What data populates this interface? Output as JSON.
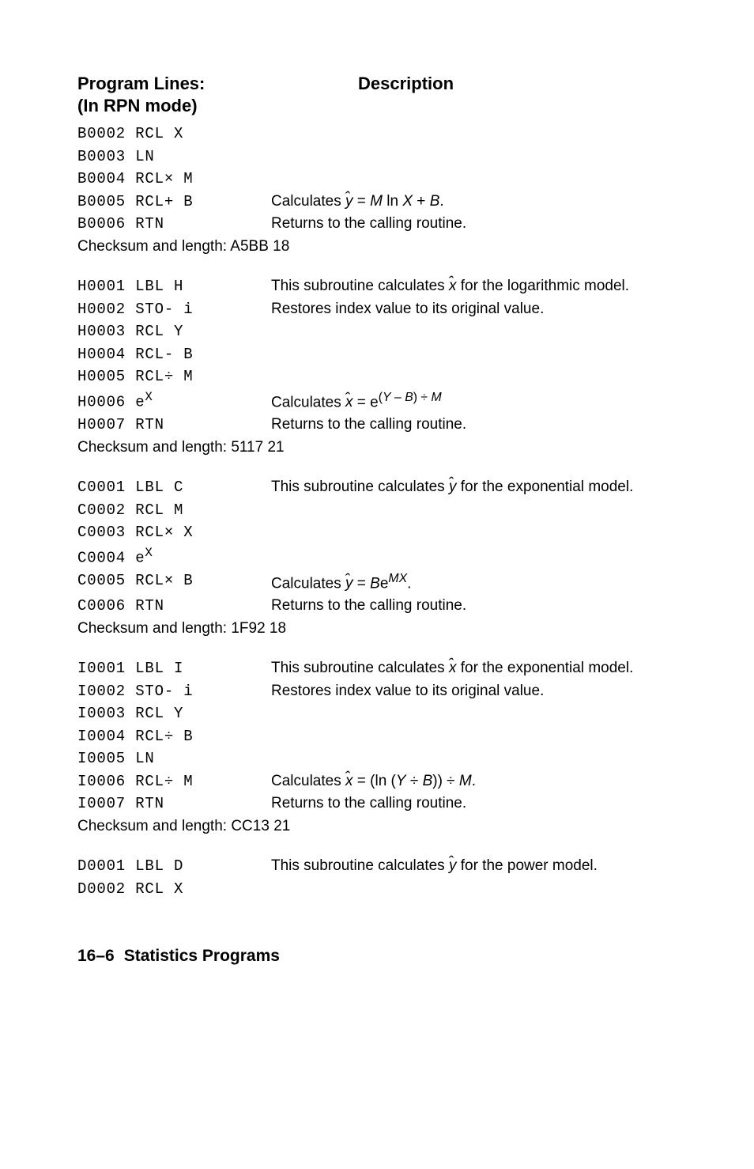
{
  "header": {
    "col1a": "Program Lines:",
    "col1b": "(In RPN mode)",
    "col2": "Description"
  },
  "b2": "B0002 RCL X",
  "b3": "B0003 LN",
  "b4": "B0004 RCL× M",
  "b5": "B0005 RCL+ B",
  "b5d_a": "Calculates  ",
  "b5d_c": " = ",
  "b5d_e": " ln ",
  "b5d_g": " + ",
  "b5d_i": ".",
  "b6": "B0006 RTN",
  "b6d": "Returns to the calling routine.",
  "bchk": "Checksum and length: A5BB   18",
  "h1": "H0001 LBL H",
  "h1d_a": "This subroutine calculates  ",
  "h1d_c": "  for the logarithmic model.",
  "h2": "H0002 STO- i",
  "h2d": "Restores index value to its original value.",
  "h3": "H0003 RCL Y",
  "h4": "H0004 RCL- B",
  "h5": "H0005 RCL÷ M",
  "h6": "H0006 e",
  "h6x": "X",
  "h6d_a": "Calculates  ",
  "h6d_c": "  = e",
  "h6d_d": "(",
  "h6d_e": " – ",
  "h6d_g": ") ÷ ",
  "h7": "H0007 RTN",
  "h7d": "Returns to the calling routine.",
  "hchk": "Checksum and length: 5117   21",
  "c1": "C0001 LBL C",
  "c1d_a": "This subroutine calculates  ",
  "c1d_c": "  for the exponential model.",
  "c2": "C0002 RCL M",
  "c3": "C0003 RCL× X",
  "c4": "C0004 e",
  "c4x": "X",
  "c5": "C0005 RCL× B",
  "c5d_a": "Calculates  ",
  "c5d_c": " = ",
  "c5d_e": "e",
  "c5d_g": ".",
  "c6": "C0006 RTN",
  "c6d": "Returns to the calling routine.",
  "cchk": "Checksum and length: 1F92   18",
  "i1": "I0001 LBL I",
  "i1d_a": "This subroutine calculates  ",
  "i1d_c": "  for the exponential model.",
  "i2": "I0002 STO- i",
  "i2d": "Restores index value to its original value.",
  "i3": "I0003 RCL Y",
  "i4": "I0004 RCL÷ B",
  "i5": "I0005 LN",
  "i6": "I0006 RCL÷ M",
  "i6d_a": "Calculates  ",
  "i6d_c": "  = (ln (",
  "i6d_e": " ÷ ",
  "i6d_g": ")) ÷ ",
  "i6d_i": ".",
  "i7": "I0007 RTN",
  "i7d": "Returns to the calling routine.",
  "ichk": "Checksum and length: CC13   21",
  "d1": "D0001 LBL D",
  "d1d_a": "This subroutine calculates  ",
  "d1d_c": "  for the power model.",
  "d2": "D0002 RCL X",
  "sym": {
    "yhat_y": "y",
    "yhat_hat": "ˆ",
    "xhat_x": "x",
    "xhat_hat": "ˆ",
    "M": "M",
    "X": "X",
    "B": "B",
    "Y": "Y",
    "MX": "MX"
  },
  "footer": {
    "page": "16–6",
    "title": "Statistics Programs"
  }
}
